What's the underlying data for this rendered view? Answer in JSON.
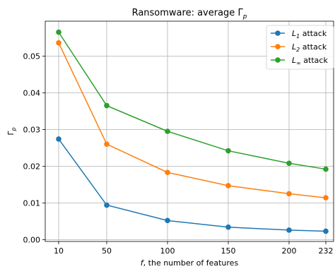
{
  "chart_data": {
    "type": "line",
    "title_prefix": "Ransomware: average Γ",
    "title_sub": "p",
    "xlabel_prefix": "f",
    "xlabel_rest": ", the number of features",
    "ylabel_main": "Γ",
    "ylabel_sub": "p",
    "x": [
      10,
      50,
      100,
      150,
      200,
      232
    ],
    "xtick_labels": [
      "10",
      "50",
      "100",
      "150",
      "200",
      "232"
    ],
    "yticks": [
      0.0,
      0.01,
      0.02,
      0.03,
      0.04,
      0.05
    ],
    "ytick_labels": [
      "0.00",
      "0.01",
      "0.02",
      "0.03",
      "0.04",
      "0.05"
    ],
    "xlim": [
      0,
      232
    ],
    "ylim": [
      -0.0005,
      0.0595
    ],
    "grid": true,
    "legend_position": "top-right",
    "series": [
      {
        "name_main": "L",
        "name_sub": "1",
        "name_rest": " attack",
        "color": "#1f77b4",
        "values": [
          0.0274,
          0.0094,
          0.0052,
          0.0034,
          0.0026,
          0.0023
        ]
      },
      {
        "name_main": "L",
        "name_sub": "2",
        "name_rest": " attack",
        "color": "#ff7f0e",
        "values": [
          0.0536,
          0.026,
          0.0183,
          0.0147,
          0.0125,
          0.0114
        ]
      },
      {
        "name_main": "L",
        "name_sub": "∞",
        "name_rest": " attack",
        "color": "#2ca02c",
        "values": [
          0.0565,
          0.0365,
          0.0295,
          0.0242,
          0.0208,
          0.0192
        ]
      }
    ]
  }
}
